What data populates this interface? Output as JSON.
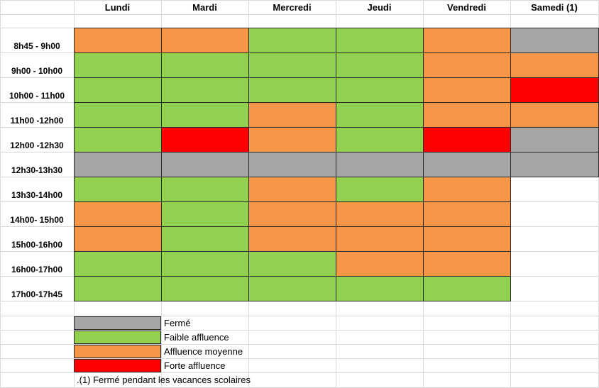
{
  "colors": {
    "ferme": "#a6a6a6",
    "faible": "#92d050",
    "moyenne": "#f79646",
    "forte": "#ff0000",
    "empty": "#ffffff"
  },
  "days": [
    "Lundi",
    "Mardi",
    "Mercredi",
    "Jeudi",
    "Vendredi",
    "Samedi (1)"
  ],
  "rows": [
    {
      "label": "8h45 - 9h00",
      "cells": [
        "moyenne",
        "moyenne",
        "faible",
        "faible",
        "moyenne",
        "ferme"
      ]
    },
    {
      "label": "9h00 - 10h00",
      "cells": [
        "faible",
        "faible",
        "faible",
        "faible",
        "moyenne",
        "moyenne"
      ]
    },
    {
      "label": "10h00 - 11h00",
      "cells": [
        "faible",
        "faible",
        "faible",
        "faible",
        "moyenne",
        "forte"
      ]
    },
    {
      "label": "11h00 -12h00",
      "cells": [
        "faible",
        "faible",
        "moyenne",
        "faible",
        "moyenne",
        "moyenne"
      ]
    },
    {
      "label": "12h00 -12h30",
      "cells": [
        "faible",
        "forte",
        "moyenne",
        "faible",
        "forte",
        "ferme"
      ]
    },
    {
      "label": "12h30-13h30",
      "cells": [
        "ferme",
        "ferme",
        "ferme",
        "ferme",
        "ferme",
        "ferme"
      ]
    },
    {
      "label": "13h30-14h00",
      "cells": [
        "faible",
        "faible",
        "moyenne",
        "faible",
        "moyenne",
        "empty"
      ]
    },
    {
      "label": "14h00- 15h00",
      "cells": [
        "moyenne",
        "faible",
        "moyenne",
        "moyenne",
        "moyenne",
        "empty"
      ]
    },
    {
      "label": "15h00-16h00",
      "cells": [
        "moyenne",
        "faible",
        "moyenne",
        "moyenne",
        "moyenne",
        "empty"
      ]
    },
    {
      "label": "16h00-17h00",
      "cells": [
        "faible",
        "faible",
        "faible",
        "moyenne",
        "moyenne",
        "empty"
      ]
    },
    {
      "label": "17h00-17h45",
      "cells": [
        "faible",
        "faible",
        "faible",
        "faible",
        "faible",
        "empty"
      ]
    }
  ],
  "legend": [
    {
      "key": "ferme",
      "label": "Fermé"
    },
    {
      "key": "faible",
      "label": "Faible affluence"
    },
    {
      "key": "moyenne",
      "label": "Affluence moyenne"
    },
    {
      "key": "forte",
      "label": "Forte affluence"
    }
  ],
  "note": ".(1) Fermé pendant les vacances scolaires"
}
